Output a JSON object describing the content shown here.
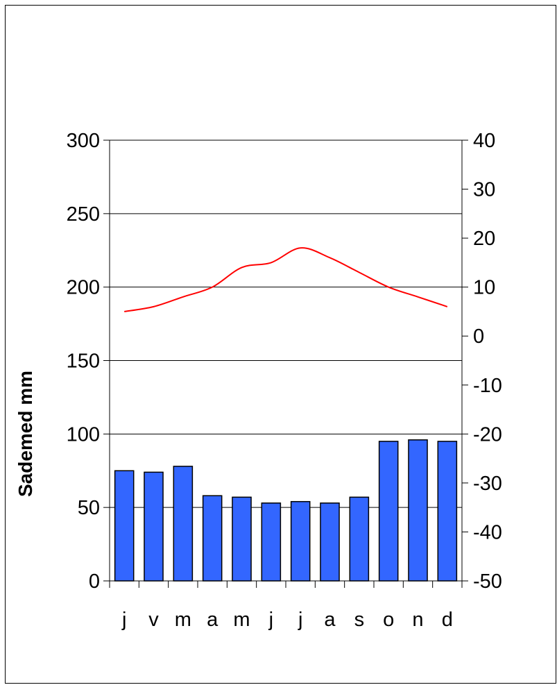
{
  "chart_data": {
    "type": "bar",
    "categories": [
      "j",
      "v",
      "m",
      "a",
      "m",
      "j",
      "j",
      "a",
      "s",
      "o",
      "n",
      "d"
    ],
    "series": [
      {
        "type": "bar",
        "axis": "left",
        "color": "#3366FF",
        "values": [
          75,
          74,
          78,
          58,
          57,
          53,
          54,
          53,
          57,
          95,
          96,
          95
        ]
      },
      {
        "type": "line",
        "axis": "right",
        "color": "#FF0000",
        "values": [
          5,
          6,
          8,
          10,
          14,
          15,
          18,
          16,
          13,
          10,
          8,
          6
        ]
      }
    ],
    "ylabel": "Sademed mm",
    "ylim": [
      0,
      300
    ],
    "yticks": [
      "0",
      "50",
      "100",
      "150",
      "200",
      "250",
      "300"
    ],
    "y2lim": [
      -50,
      40
    ],
    "y2ticks": [
      "-50",
      "-40",
      "-30",
      "-20",
      "-10",
      "0",
      "10",
      "20",
      "30",
      "40"
    ],
    "grid": true
  }
}
